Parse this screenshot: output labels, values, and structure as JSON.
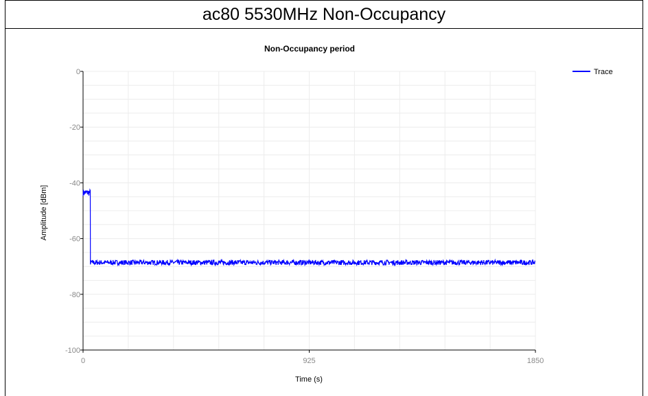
{
  "header": {
    "title": "ac80 5530MHz Non-Occupancy"
  },
  "chart_data": {
    "type": "line",
    "title": "Non-Occupancy period",
    "xlabel": "Time (s)",
    "ylabel": "Amplitude [dBm]",
    "xlim": [
      0,
      1850
    ],
    "ylim": [
      -100,
      0
    ],
    "x_ticks": [
      "0",
      "925",
      "1850"
    ],
    "y_ticks": [
      "0",
      "-20",
      "-40",
      "-60",
      "-80",
      "-100"
    ],
    "grid": true,
    "legend_position": "top-right",
    "series": [
      {
        "name": "Trace",
        "color": "#0000ff",
        "segments": [
          {
            "x_start": 0,
            "x_end": 30,
            "level": -43.5,
            "noise": 1.2
          },
          {
            "x_start": 30,
            "x_end": 1850,
            "level": -68.6,
            "noise": 0.9
          }
        ]
      }
    ]
  }
}
